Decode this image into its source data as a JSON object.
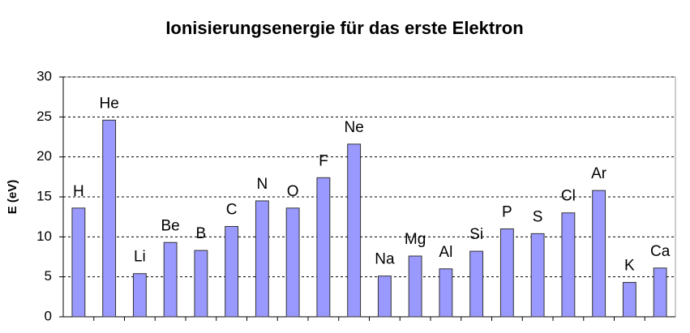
{
  "chart_data": {
    "type": "bar",
    "title": "Ionisierungsenergie für das erste Elektron",
    "y_label": "E (eV)",
    "categories": [
      "H",
      "He",
      "Li",
      "Be",
      "B",
      "C",
      "N",
      "O",
      "F",
      "Ne",
      "Na",
      "Mg",
      "Al",
      "Si",
      "P",
      "S",
      "Cl",
      "Ar",
      "K",
      "Ca"
    ],
    "values": [
      13.6,
      24.6,
      5.4,
      9.3,
      8.3,
      11.3,
      14.5,
      13.6,
      17.4,
      21.6,
      5.1,
      7.6,
      6.0,
      8.2,
      11.0,
      10.4,
      13.0,
      15.8,
      4.3,
      6.1
    ],
    "color": "#9999ff",
    "ylim": [
      0,
      30
    ],
    "yticks": [
      0,
      5,
      10,
      15,
      20,
      25,
      30
    ],
    "grid": true
  }
}
